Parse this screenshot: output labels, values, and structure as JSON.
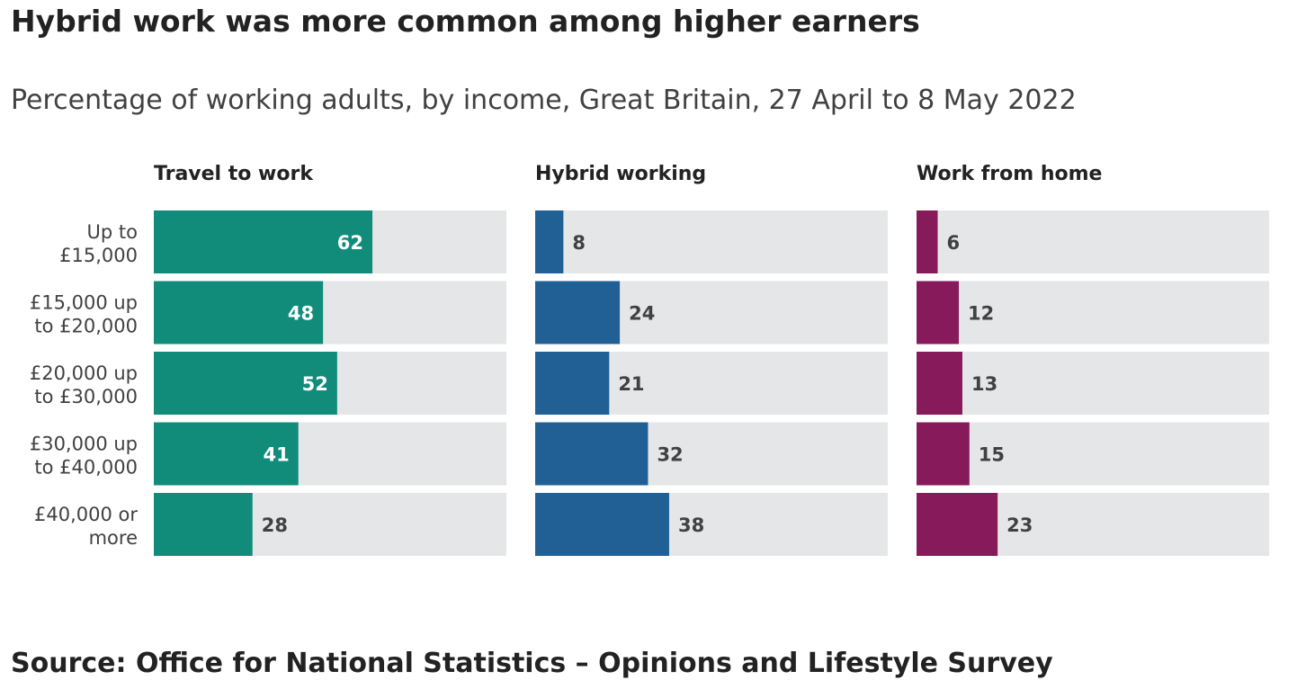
{
  "title": "Hybrid work was more common among higher earners",
  "subtitle": "Percentage of working adults, by income, Great Britain, 27 April to 8 May 2022",
  "source": "Source: Office for National Statistics – Opinions and Lifestyle Survey",
  "colors": {
    "track": "#e5e6e8",
    "label_inside": "#ffffff",
    "label_outside": "#414042"
  },
  "chart_data": {
    "type": "bar",
    "orientation": "horizontal",
    "layout": "small-multiples",
    "categories": [
      [
        "Up to",
        "£15,000"
      ],
      [
        "£15,000 up",
        "to £20,000"
      ],
      [
        "£20,000 up",
        "to £30,000"
      ],
      [
        "£30,000 up",
        "to £40,000"
      ],
      [
        "£40,000 or",
        "more"
      ]
    ],
    "xlim": [
      0,
      100
    ],
    "grid": false,
    "data_labels": true,
    "series": [
      {
        "name": "Travel to work",
        "color": "#118c7b",
        "values": [
          62,
          48,
          52,
          41,
          28
        ]
      },
      {
        "name": "Hybrid working",
        "color": "#206095",
        "values": [
          8,
          24,
          21,
          32,
          38
        ]
      },
      {
        "name": "Work from home",
        "color": "#871a5b",
        "values": [
          6,
          12,
          13,
          15,
          23
        ]
      }
    ]
  }
}
